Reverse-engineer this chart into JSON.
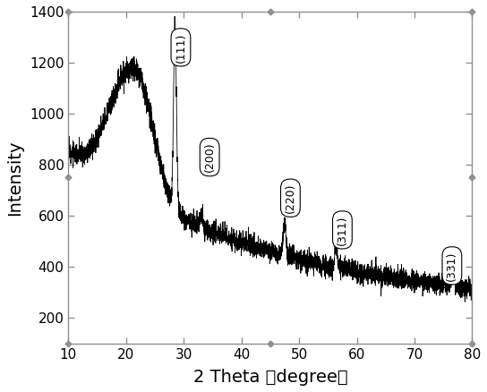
{
  "title": "",
  "xlabel": "2 Theta （degree）",
  "ylabel": "Intensity",
  "xlim": [
    10,
    80
  ],
  "ylim": [
    100,
    1400
  ],
  "yticks": [
    200,
    400,
    600,
    800,
    1000,
    1200,
    1400
  ],
  "xticks": [
    10,
    20,
    30,
    40,
    50,
    60,
    70,
    80
  ],
  "line_color": "#000000",
  "background_color": "#ffffff",
  "border_color": "#909090",
  "tick_color": "#909090",
  "axis_label_fontsize": 14,
  "tick_label_fontsize": 11,
  "annotation_fontsize": 9,
  "peak_annotations": [
    {
      "label": "(111)",
      "xtext": 29.5,
      "ytext": 1260,
      "rotation": 90
    },
    {
      "label": "(200)",
      "xtext": 34.5,
      "ytext": 830,
      "rotation": 90
    },
    {
      "label": "(220)",
      "xtext": 48.5,
      "ytext": 670,
      "rotation": 90
    },
    {
      "label": "(311)",
      "xtext": 57.5,
      "ytext": 545,
      "rotation": 90
    },
    {
      "label": "(331)",
      "xtext": 76.5,
      "ytext": 405,
      "rotation": 90
    }
  ],
  "diamond_markers": [
    [
      10,
      1400
    ],
    [
      45,
      1400
    ],
    [
      80,
      1400
    ],
    [
      10,
      750
    ],
    [
      80,
      750
    ],
    [
      10,
      100
    ],
    [
      45,
      100
    ],
    [
      80,
      100
    ]
  ]
}
